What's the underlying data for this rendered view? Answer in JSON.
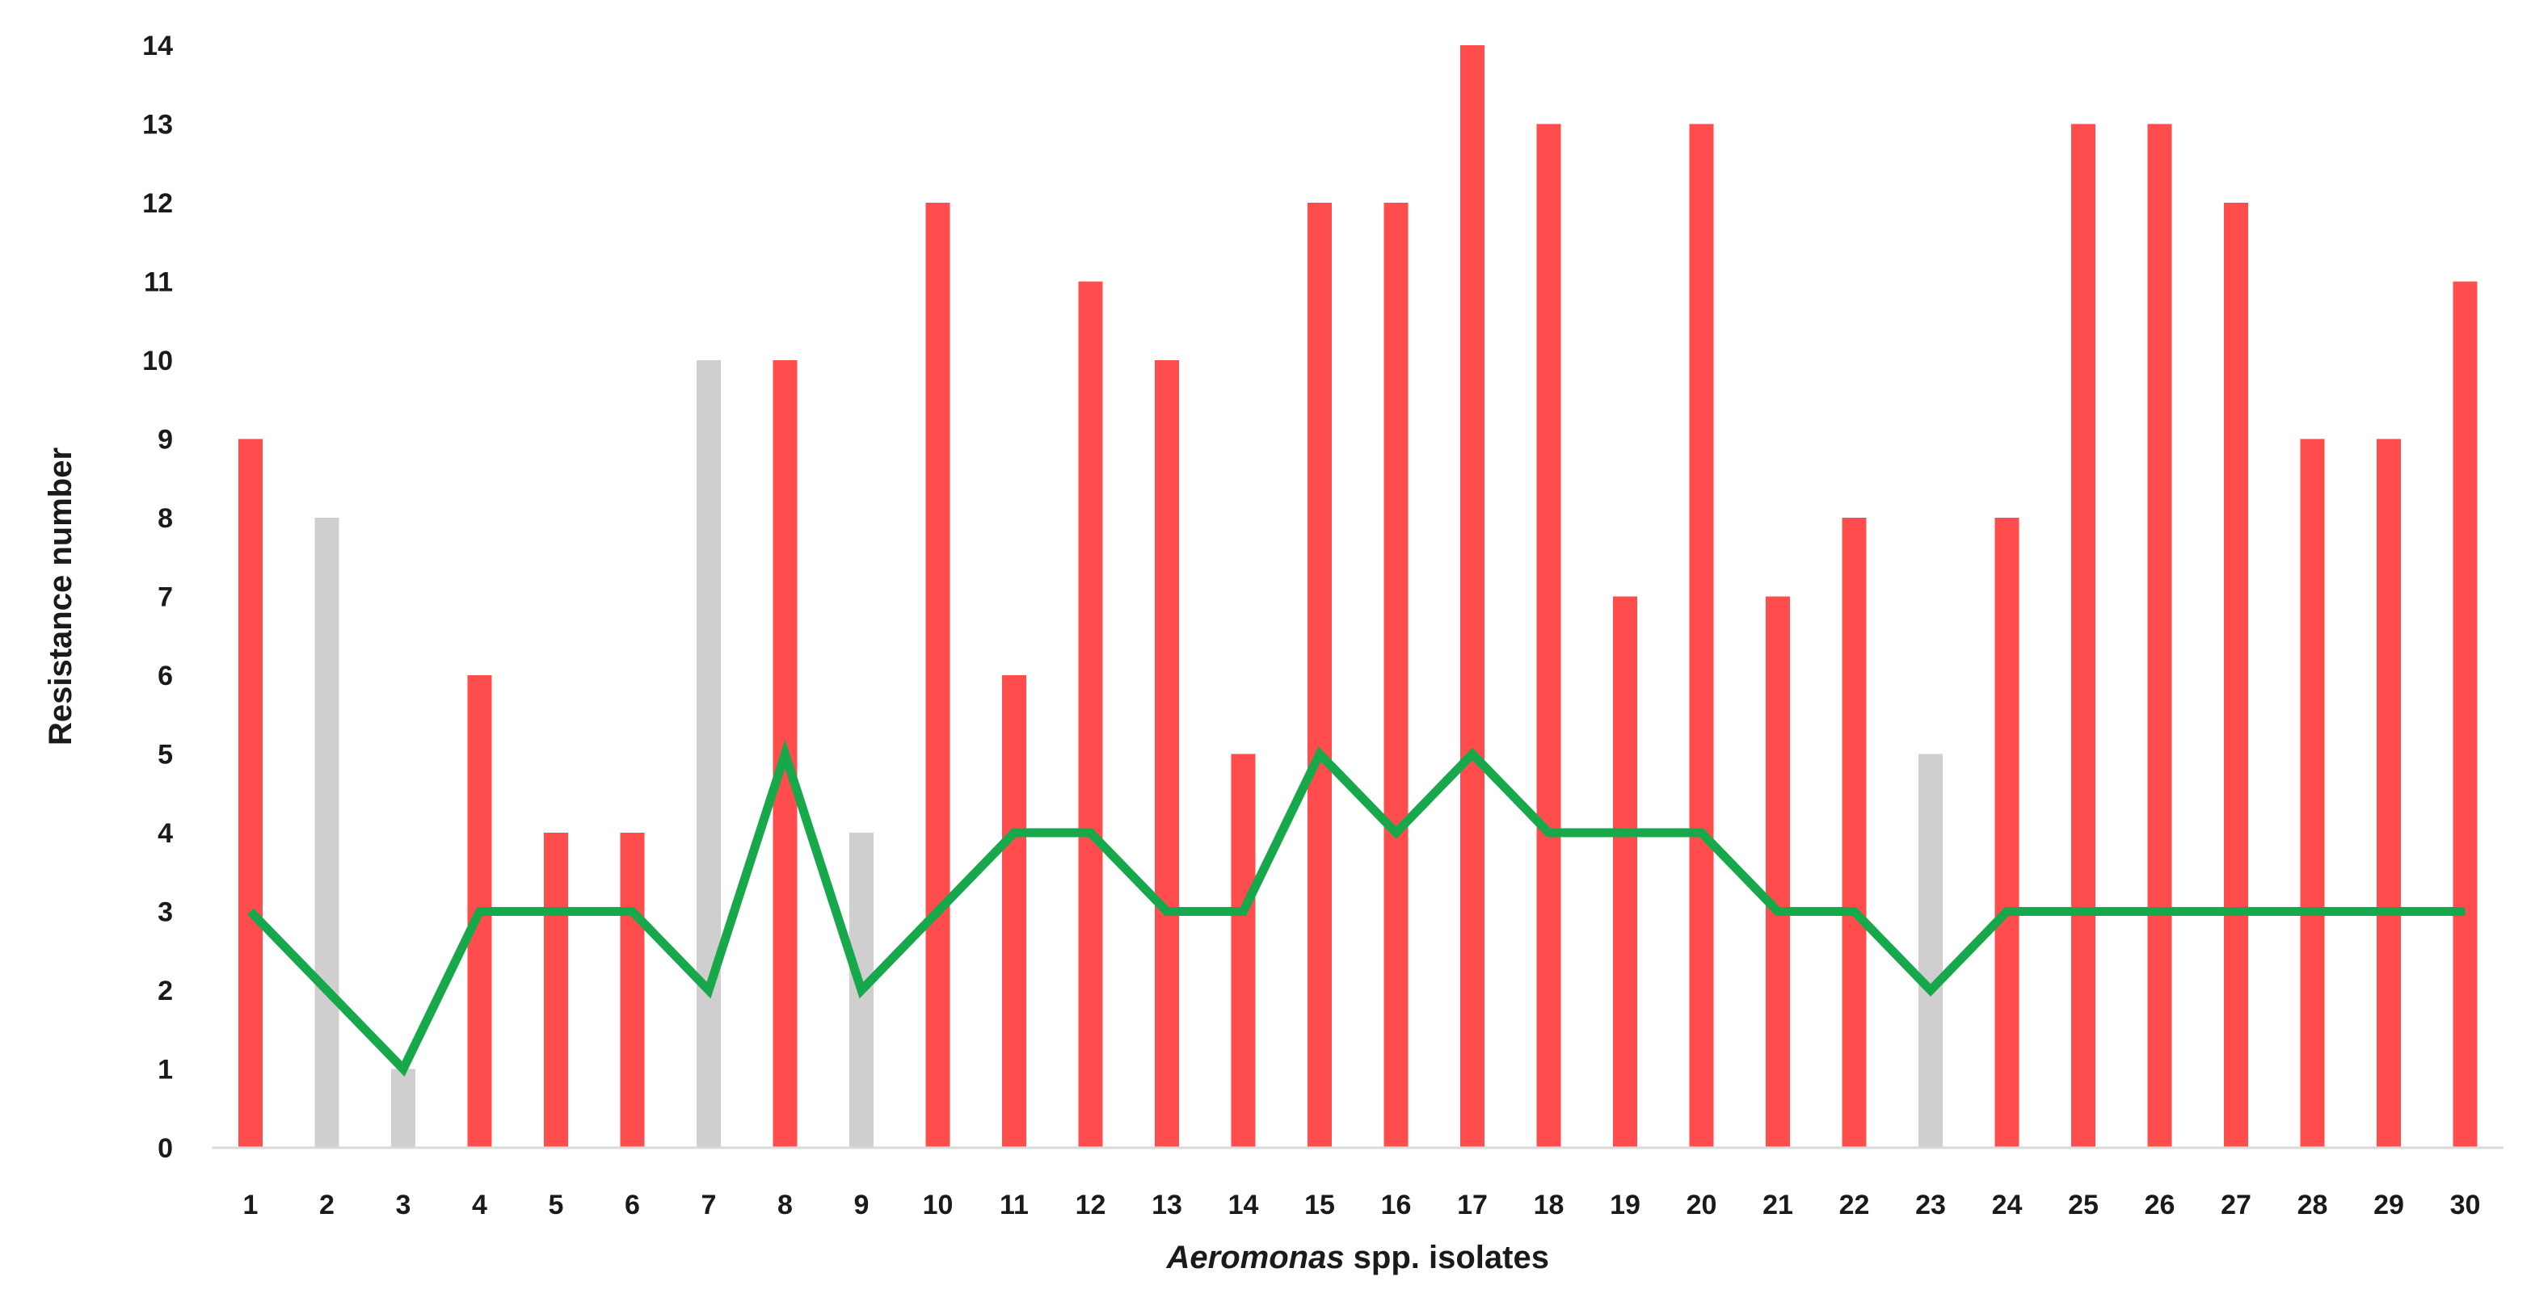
{
  "chart_data": {
    "type": "bar",
    "categories": [
      "1",
      "2",
      "3",
      "4",
      "5",
      "6",
      "7",
      "8",
      "9",
      "10",
      "11",
      "12",
      "13",
      "14",
      "15",
      "16",
      "17",
      "18",
      "19",
      "20",
      "21",
      "22",
      "23",
      "24",
      "25",
      "26",
      "27",
      "28",
      "29",
      "30"
    ],
    "series": [
      {
        "type": "bar",
        "values": [
          9,
          8,
          1,
          6,
          4,
          4,
          10,
          10,
          4,
          12,
          6,
          11,
          10,
          5,
          12,
          12,
          14,
          13,
          7,
          13,
          7,
          8,
          5,
          8,
          13,
          13,
          12,
          9,
          9,
          11
        ],
        "colors": [
          "red",
          "gray",
          "gray",
          "red",
          "red",
          "red",
          "gray",
          "red",
          "gray",
          "red",
          "red",
          "red",
          "red",
          "red",
          "red",
          "red",
          "red",
          "red",
          "red",
          "red",
          "red",
          "red",
          "gray",
          "red",
          "red",
          "red",
          "red",
          "red",
          "red",
          "red"
        ]
      },
      {
        "type": "line",
        "values": [
          3,
          2,
          1,
          3,
          3,
          3,
          2,
          5,
          2,
          3,
          4,
          4,
          3,
          3,
          5,
          4,
          5,
          4,
          4,
          4,
          3,
          3,
          2,
          3,
          3,
          3,
          3,
          3,
          3,
          3
        ],
        "color": "#16a84a"
      }
    ],
    "palette": {
      "red": "#ff4d4d",
      "gray": "#d0cece"
    },
    "ylim": [
      0,
      14
    ],
    "yticks": [
      0,
      1,
      2,
      3,
      4,
      5,
      6,
      7,
      8,
      9,
      10,
      11,
      12,
      13,
      14
    ],
    "ylabel": "Resistance number",
    "xlabel_italic": "Aeromonas",
    "xlabel_rest": " spp. isolates",
    "grid": false,
    "legend": "none"
  }
}
